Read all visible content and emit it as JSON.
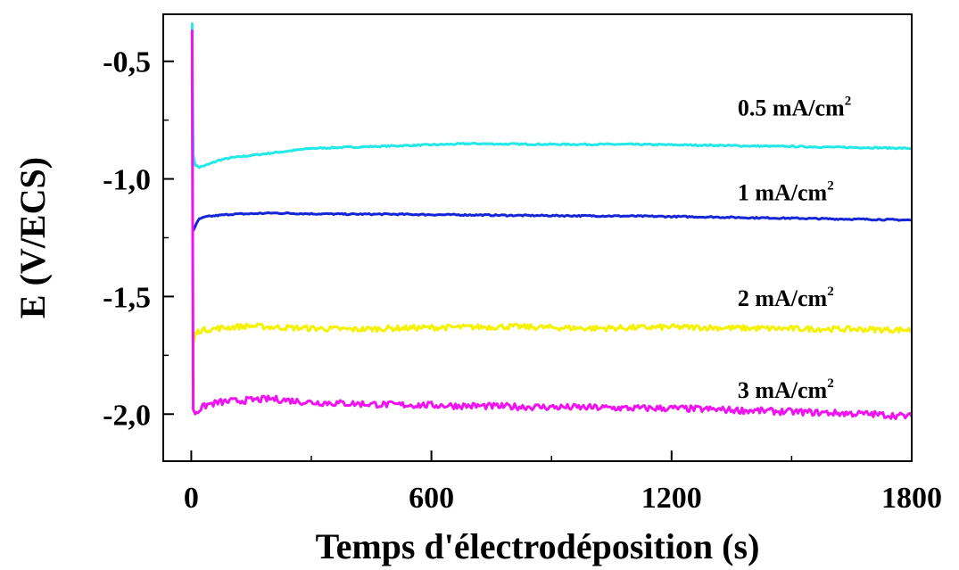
{
  "chart_data": {
    "type": "line",
    "xlabel": "Temps d'électrodéposition (s)",
    "ylabel": "E (V/ECS)",
    "xlim": [
      -70,
      1800
    ],
    "ylim": [
      -2.2,
      -0.3
    ],
    "x_ticks": [
      {
        "value": 0,
        "label": "0"
      },
      {
        "value": 600,
        "label": "600"
      },
      {
        "value": 1200,
        "label": "1200"
      },
      {
        "value": 1800,
        "label": "1800"
      }
    ],
    "y_ticks": [
      {
        "value": -0.5,
        "label": "-0,5"
      },
      {
        "value": -1.0,
        "label": "-1,0"
      },
      {
        "value": -1.5,
        "label": "-1,5"
      },
      {
        "value": -2.0,
        "label": "-2,0"
      }
    ],
    "grid": false,
    "legend": "inline-right",
    "series": [
      {
        "label": "0.5 mA/cm",
        "label_sup": "2",
        "color": "#22e8e8",
        "label_at": {
          "x": 1365,
          "y": -0.73
        },
        "x": [
          0,
          2,
          5,
          10,
          20,
          40,
          70,
          100,
          150,
          200,
          300,
          400,
          500,
          600,
          700,
          800,
          900,
          1000,
          1100,
          1200,
          1300,
          1400,
          1500,
          1600,
          1700,
          1800
        ],
        "y": [
          -0.34,
          -0.34,
          -0.9,
          -0.94,
          -0.95,
          -0.94,
          -0.92,
          -0.91,
          -0.9,
          -0.89,
          -0.87,
          -0.865,
          -0.86,
          -0.855,
          -0.85,
          -0.852,
          -0.853,
          -0.853,
          -0.853,
          -0.855,
          -0.857,
          -0.86,
          -0.862,
          -0.865,
          -0.867,
          -0.87
        ]
      },
      {
        "label": "1 mA/cm",
        "label_sup": "2",
        "color": "#1426d8",
        "label_at": {
          "x": 1365,
          "y": -1.09
        },
        "x": [
          5,
          10,
          20,
          40,
          70,
          100,
          150,
          200,
          300,
          400,
          500,
          600,
          700,
          800,
          900,
          1000,
          1100,
          1200,
          1300,
          1400,
          1500,
          1600,
          1700,
          1800
        ],
        "y": [
          -1.22,
          -1.2,
          -1.17,
          -1.16,
          -1.155,
          -1.15,
          -1.148,
          -1.145,
          -1.148,
          -1.15,
          -1.15,
          -1.152,
          -1.153,
          -1.155,
          -1.156,
          -1.157,
          -1.158,
          -1.16,
          -1.162,
          -1.165,
          -1.167,
          -1.17,
          -1.172,
          -1.175
        ]
      },
      {
        "label": "2 mA/cm",
        "label_sup": "2",
        "color": "#f5f200",
        "label_at": {
          "x": 1365,
          "y": -1.54
        },
        "x": [
          5,
          10,
          20,
          40,
          70,
          100,
          150,
          200,
          300,
          400,
          500,
          600,
          700,
          800,
          900,
          1000,
          1100,
          1200,
          1300,
          1400,
          1500,
          1600,
          1700,
          1800
        ],
        "y": [
          -1.7,
          -1.66,
          -1.645,
          -1.64,
          -1.635,
          -1.63,
          -1.625,
          -1.63,
          -1.635,
          -1.64,
          -1.635,
          -1.632,
          -1.63,
          -1.628,
          -1.632,
          -1.635,
          -1.633,
          -1.63,
          -1.632,
          -1.635,
          -1.637,
          -1.638,
          -1.64,
          -1.642
        ]
      },
      {
        "label": "3 mA/cm",
        "label_sup": "2",
        "color": "#f012f0",
        "label_at": {
          "x": 1365,
          "y": -1.93
        },
        "x": [
          0,
          2,
          5,
          10,
          20,
          40,
          70,
          100,
          150,
          200,
          300,
          400,
          500,
          600,
          700,
          800,
          900,
          1000,
          1100,
          1200,
          1300,
          1400,
          1500,
          1600,
          1700,
          1800
        ],
        "y": [
          -0.37,
          -0.37,
          -1.98,
          -1.995,
          -1.98,
          -1.96,
          -1.95,
          -1.945,
          -1.94,
          -1.935,
          -1.95,
          -1.955,
          -1.96,
          -1.962,
          -1.965,
          -1.968,
          -1.97,
          -1.972,
          -1.975,
          -1.975,
          -1.98,
          -1.985,
          -1.99,
          -1.995,
          -2.0,
          -2.01
        ]
      }
    ]
  }
}
